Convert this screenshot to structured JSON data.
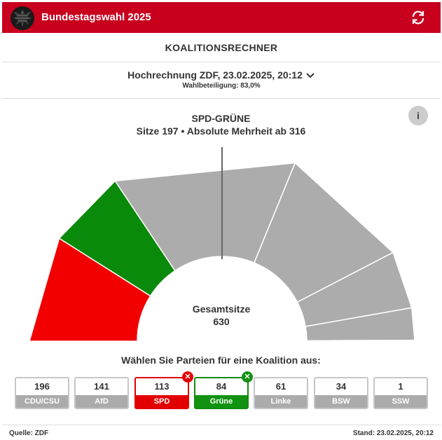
{
  "header": {
    "title": "Bundestagswahl 2025"
  },
  "subheader": {
    "title": "KOALITIONSRECHNER"
  },
  "selector": {
    "main": "Hochrechnung ZDF, 23.02.2025, 20:12",
    "sub": "Wahlbeteiligung: 83,0%"
  },
  "coalition": {
    "name": "SPD-GRÜNE",
    "seats_line": "Sitze 197 • Absolute Mehrheit ab 316"
  },
  "info": {
    "label": "i"
  },
  "chart_center": {
    "label": "Gesamtsitze",
    "value": "630"
  },
  "prompt": "Wählen Sie Parteien für eine Koalition aus:",
  "footer": {
    "source": "Quelle: ZDF",
    "stand": "Stand: 23.02.2025, 20:12"
  },
  "colors": {
    "brand": "#c8001e",
    "spd": "#f20000",
    "gruene": "#0a8a0a",
    "inactive": "#acacac"
  },
  "chart_data": {
    "type": "semicircle-donut",
    "title": "SPD-GRÜNE",
    "subtitle": "Sitze 197 • Absolute Mehrheit ab 316",
    "total": 630,
    "majority": 316,
    "series": [
      {
        "name": "SPD",
        "value": 113,
        "selected": true,
        "color": "#f20000"
      },
      {
        "name": "Grüne",
        "value": 84,
        "selected": true,
        "color": "#0a8a0a"
      },
      {
        "name": "CDU/CSU",
        "value": 196,
        "selected": false,
        "color": "#acacac"
      },
      {
        "name": "AfD",
        "value": 141,
        "selected": false,
        "color": "#acacac"
      },
      {
        "name": "Linke",
        "value": 61,
        "selected": false,
        "color": "#acacac"
      },
      {
        "name": "BSW",
        "value": 34,
        "selected": false,
        "color": "#acacac"
      },
      {
        "name": "SSW",
        "value": 1,
        "selected": false,
        "color": "#acacac"
      }
    ]
  },
  "parties": [
    {
      "id": "cdu",
      "seats": "196",
      "label": "CDU/CSU",
      "selected": false
    },
    {
      "id": "afd",
      "seats": "141",
      "label": "AfD",
      "selected": false
    },
    {
      "id": "spd",
      "seats": "113",
      "label": "SPD",
      "selected": true,
      "badge": "✕"
    },
    {
      "id": "gruene",
      "seats": "84",
      "label": "Grüne",
      "selected": true,
      "badge": "✕"
    },
    {
      "id": "linke",
      "seats": "61",
      "label": "Linke",
      "selected": false
    },
    {
      "id": "bsw",
      "seats": "34",
      "label": "BSW",
      "selected": false
    },
    {
      "id": "ssw",
      "seats": "1",
      "label": "SSW",
      "selected": false
    }
  ]
}
